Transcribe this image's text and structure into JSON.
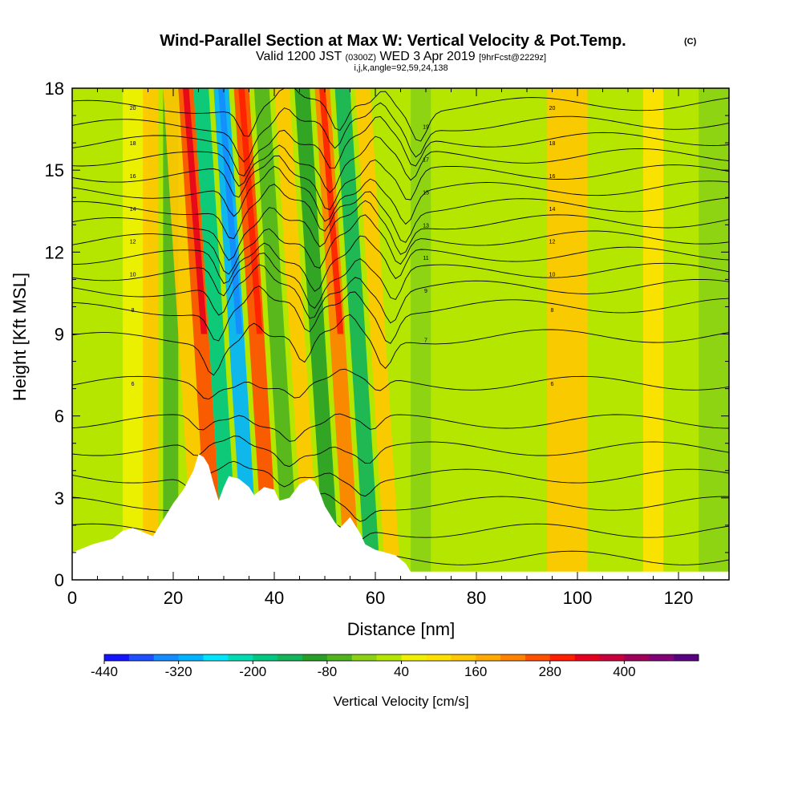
{
  "chart_data": {
    "type": "heatmap",
    "title": "Wind-Parallel Section at Max W: Vertical Velocity & Pot.Temp.",
    "title_suffix": "(C)",
    "subtitle": {
      "valid_prefix": "Valid 1200 JST",
      "zulu": "(0300Z)",
      "date": "WED 3 Apr 2019",
      "forecast": "[9hrFcst@2229z]"
    },
    "info_line": "i,j,k,angle=92,59,24,138",
    "xlabel": "Distance [nm]",
    "ylabel": "Height [Kft MSL]",
    "xlim": [
      0,
      130
    ],
    "ylim": [
      0,
      18
    ],
    "x_ticks": [
      "0",
      "20",
      "40",
      "60",
      "80",
      "100",
      "120"
    ],
    "y_ticks": [
      "0",
      "3",
      "6",
      "9",
      "12",
      "15",
      "18"
    ],
    "colorbar": {
      "label": "Vertical Velocity [cm/s]",
      "tick_labels": [
        "-440",
        "-320",
        "-200",
        "-80",
        "40",
        "160",
        "280",
        "400"
      ],
      "colors": [
        "#1414ff",
        "#1e50ff",
        "#148cff",
        "#00b4ff",
        "#00e6ff",
        "#00dcb4",
        "#00c882",
        "#14b45a",
        "#28a028",
        "#50b41e",
        "#8cd214",
        "#b4e600",
        "#f0f000",
        "#ffe100",
        "#ffc800",
        "#ffaa00",
        "#ff8200",
        "#ff5000",
        "#ff1e00",
        "#e6001e",
        "#c8003c",
        "#a0005a",
        "#820078",
        "#5a0082"
      ]
    },
    "vertical_velocity_bands": [
      {
        "x": 4,
        "w": 3,
        "value": 0
      },
      {
        "x": 10,
        "w": 5,
        "value": 40
      },
      {
        "x": 14,
        "w": 3,
        "value": 120
      },
      {
        "x": 18,
        "w": 3,
        "value": -70
      },
      {
        "x": 24,
        "w": 3,
        "value": 140
      },
      {
        "x": 27,
        "w": 3,
        "value": 260
      },
      {
        "x": 30,
        "w": 3,
        "value": -180
      },
      {
        "x": 34,
        "w": 3,
        "value": -300
      },
      {
        "x": 38,
        "w": 3,
        "value": 240
      },
      {
        "x": 42,
        "w": 3,
        "value": -80
      },
      {
        "x": 46,
        "w": 3,
        "value": 140
      },
      {
        "x": 50,
        "w": 3,
        "value": -100
      },
      {
        "x": 54,
        "w": 3,
        "value": 230
      },
      {
        "x": 58,
        "w": 3,
        "value": -140
      },
      {
        "x": 62,
        "w": 3,
        "value": 120
      },
      {
        "x": 67,
        "w": 4,
        "value": -20
      },
      {
        "x": 75,
        "w": 5,
        "value": 30
      },
      {
        "x": 94,
        "w": 8,
        "value": 140
      },
      {
        "x": 113,
        "w": 4,
        "value": 90
      },
      {
        "x": 124,
        "w": 6,
        "value": -30
      }
    ],
    "theta_contour_base_kft": [
      0.8,
      1.8,
      2.8,
      3.8,
      4.8,
      5.8,
      7.2,
      8.8,
      9.9,
      10.6,
      11.2,
      11.8,
      12.4,
      13.0,
      13.6,
      14.2,
      14.8,
      15.4,
      16.0,
      16.6,
      17.3
    ],
    "theta_contour_labels": [
      "6",
      "7",
      "8",
      "9",
      "10",
      "11",
      "12",
      "13",
      "14",
      "15",
      "16",
      "17",
      "18",
      "19",
      "20"
    ],
    "terrain_profile": [
      [
        0,
        1.0
      ],
      [
        4,
        1.3
      ],
      [
        8,
        1.5
      ],
      [
        10,
        1.8
      ],
      [
        12,
        1.9
      ],
      [
        16,
        1.6
      ],
      [
        18,
        2.2
      ],
      [
        20,
        2.8
      ],
      [
        22,
        3.3
      ],
      [
        24,
        4.0
      ],
      [
        25,
        4.6
      ],
      [
        26,
        4.5
      ],
      [
        27,
        4.2
      ],
      [
        28,
        3.5
      ],
      [
        29,
        2.9
      ],
      [
        30,
        3.4
      ],
      [
        31,
        3.8
      ],
      [
        33,
        3.7
      ],
      [
        35,
        3.4
      ],
      [
        36,
        3.1
      ],
      [
        38,
        3.4
      ],
      [
        40,
        3.3
      ],
      [
        41,
        2.9
      ],
      [
        43,
        3.0
      ],
      [
        45,
        3.5
      ],
      [
        47,
        3.7
      ],
      [
        48,
        3.6
      ],
      [
        49,
        3.2
      ],
      [
        50,
        2.7
      ],
      [
        51,
        2.4
      ],
      [
        52,
        2.1
      ],
      [
        53,
        1.9
      ],
      [
        55,
        2.3
      ],
      [
        56,
        2.0
      ],
      [
        57,
        1.7
      ],
      [
        58,
        1.3
      ],
      [
        60,
        1.1
      ],
      [
        62,
        1.0
      ],
      [
        64,
        0.9
      ],
      [
        66,
        0.6
      ],
      [
        67,
        0.3
      ],
      [
        130,
        0.3
      ]
    ]
  }
}
